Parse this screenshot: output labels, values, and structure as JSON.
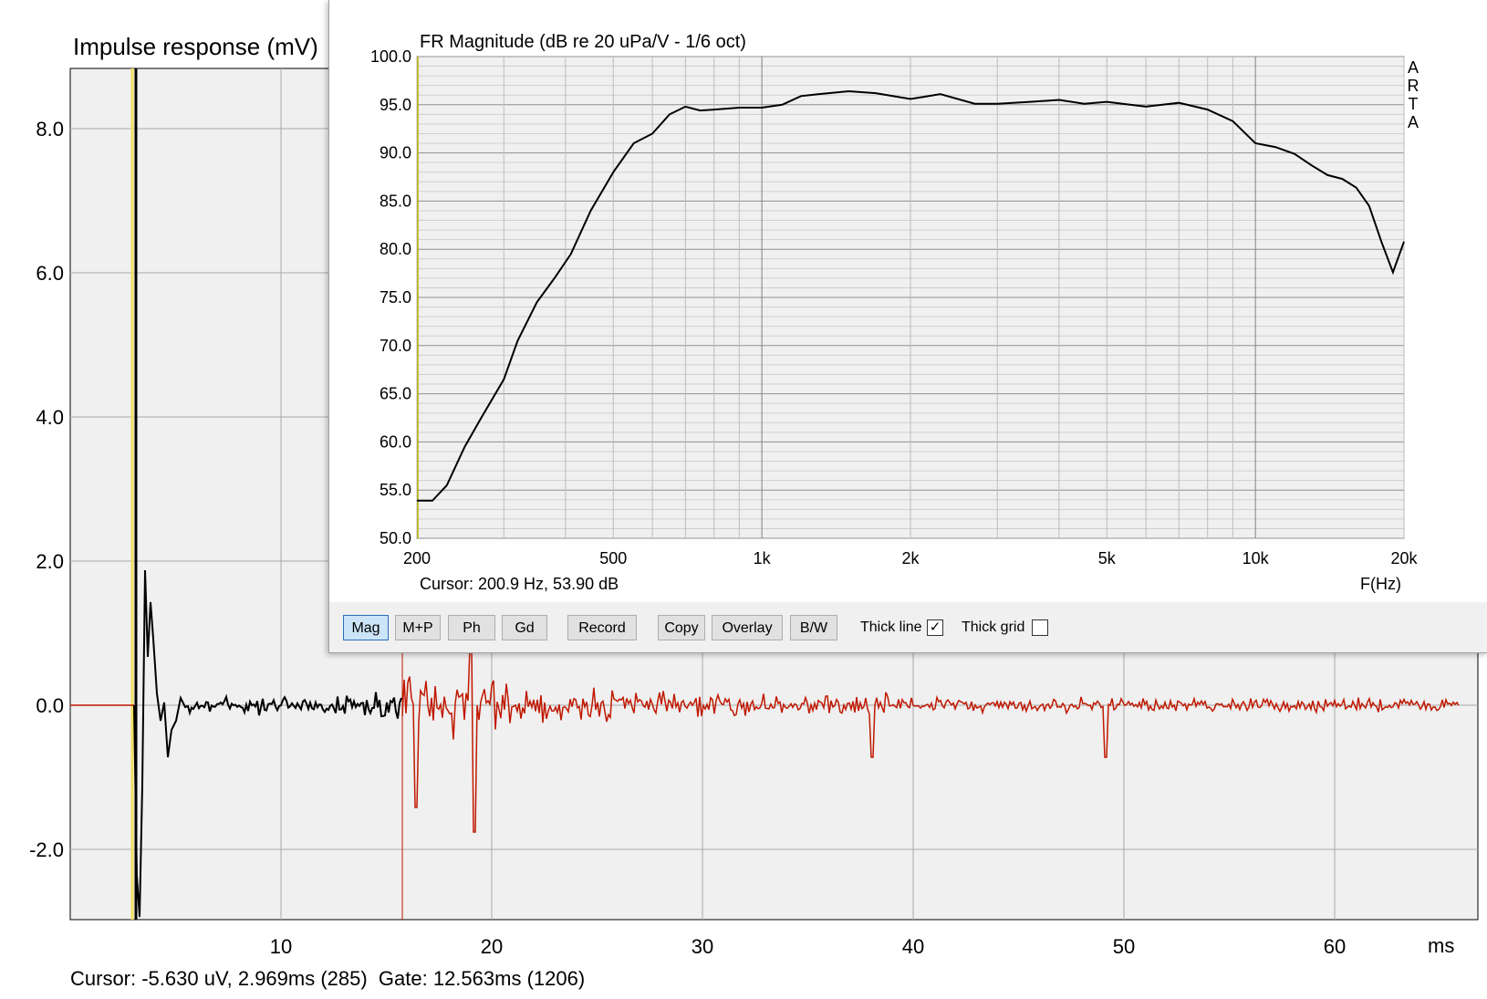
{
  "impulse": {
    "title": "Impulse response (mV)",
    "y_ticks": [
      "8.0",
      "6.0",
      "4.0",
      "2.0",
      "0.0",
      "-2.0"
    ],
    "x_ticks": [
      "10",
      "20",
      "30",
      "40",
      "50",
      "60"
    ],
    "x_unit": "ms",
    "cursor_text": "Cursor: -5.630 uV, 2.969ms (285)  Gate: 12.563ms (1206)",
    "colors": {
      "window": "#000000",
      "outside": "#c01800",
      "marker_yellow": "#f0e060",
      "gate_marker": "#c01800"
    }
  },
  "fr": {
    "title": "FR Magnitude (dB re 20 uPa/V - 1/6 oct)",
    "y_ticks": [
      "100.0",
      "95.0",
      "90.0",
      "85.0",
      "80.0",
      "75.0",
      "70.0",
      "65.0",
      "60.0",
      "55.0",
      "50.0"
    ],
    "x_ticks": [
      "200",
      "500",
      "1k",
      "2k",
      "5k",
      "10k",
      "20k"
    ],
    "x_unit": "F(Hz)",
    "watermark": [
      "A",
      "R",
      "T",
      "A"
    ],
    "cursor_text": "Cursor: 200.9 Hz, 53.90 dB",
    "chart_data": {
      "type": "line",
      "xscale": "log",
      "xlim": [
        200,
        20000
      ],
      "ylim": [
        50,
        100
      ],
      "x": [
        200,
        215,
        230,
        250,
        270,
        300,
        320,
        350,
        380,
        410,
        450,
        500,
        550,
        600,
        650,
        700,
        750,
        800,
        900,
        1000,
        1100,
        1200,
        1300,
        1500,
        1700,
        2000,
        2300,
        2700,
        3000,
        3500,
        4000,
        4500,
        5000,
        6000,
        7000,
        8000,
        9000,
        10000,
        11000,
        12000,
        13000,
        14000,
        15000,
        16000,
        17000,
        18000,
        19000,
        20000
      ],
      "y": [
        53.9,
        53.9,
        55.5,
        59.5,
        62.5,
        66.5,
        70.5,
        74.5,
        77.0,
        79.5,
        84.0,
        88.0,
        91.0,
        92.0,
        94.0,
        94.8,
        94.4,
        94.5,
        94.7,
        94.7,
        95.0,
        95.9,
        96.1,
        96.4,
        96.2,
        95.6,
        96.1,
        95.1,
        95.1,
        95.3,
        95.5,
        95.1,
        95.3,
        94.8,
        95.2,
        94.5,
        93.3,
        91.0,
        90.6,
        89.9,
        88.7,
        87.7,
        87.3,
        86.4,
        84.5,
        80.8,
        77.6,
        80.8
      ]
    }
  },
  "toolbar": {
    "buttons": [
      "Mag",
      "M+P",
      "Ph",
      "Gd",
      "Record",
      "Copy",
      "Overlay",
      "B/W"
    ],
    "thick_line_label": "Thick line",
    "thick_line_checked": true,
    "thick_grid_label": "Thick grid",
    "thick_grid_checked": false,
    "check_mark": "✓"
  }
}
